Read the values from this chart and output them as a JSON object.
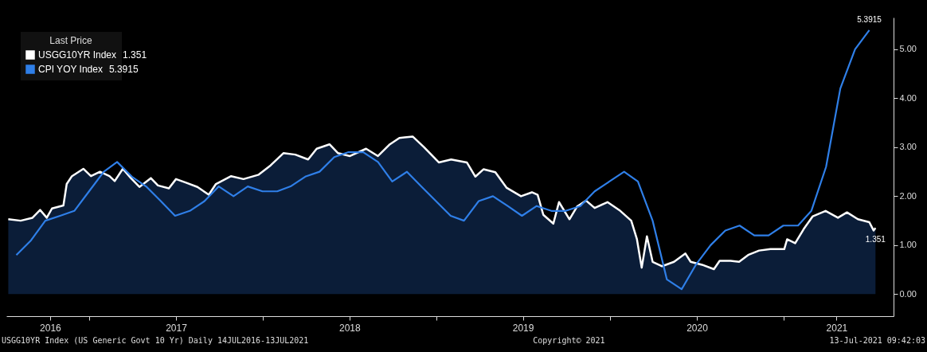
{
  "chart_data": {
    "type": "area",
    "legend_title": "Last Price",
    "legend": "top left",
    "grid": false,
    "line_style": "solid",
    "xlim": [
      "2016-07-10",
      "2021-08-20"
    ],
    "xticks": [
      {
        "value": "2016-10-10",
        "label": "2016"
      },
      {
        "value": "2017-01-01",
        "label": null
      },
      {
        "value": "2017-07-02",
        "label": "2017"
      },
      {
        "value": "2018-01-01",
        "label": null
      },
      {
        "value": "2018-07-02",
        "label": "2018"
      },
      {
        "value": "2019-01-01",
        "label": null
      },
      {
        "value": "2019-07-02",
        "label": "2019"
      },
      {
        "value": "2020-01-01",
        "label": null
      },
      {
        "value": "2020-07-02",
        "label": "2020"
      },
      {
        "value": "2021-01-01",
        "label": null
      },
      {
        "value": "2021-04-22",
        "label": "2021"
      }
    ],
    "ylim": [
      -0.45,
      5.65
    ],
    "yticks": [
      {
        "value": 0,
        "label": "0.00"
      },
      {
        "value": 1,
        "label": "1.00"
      },
      {
        "value": 2,
        "label": "2.00"
      },
      {
        "value": 3,
        "label": "3.00"
      },
      {
        "value": 4,
        "label": "4.00"
      },
      {
        "value": 5,
        "label": "5.00"
      }
    ],
    "annotations": [
      "USGG10YR Index (US Generic Govt 10 Yr)  Daily 14JUL2016-13JUL2021",
      "Copyright© 2021",
      "13-Jul-2021 09:42:03"
    ],
    "series": [
      {
        "name": "USGG10YR Index",
        "color": "#ffffff",
        "x": [
          "2016-07-14",
          "2016-08-09",
          "2016-09-03",
          "2016-09-19",
          "2016-10-03",
          "2016-10-14",
          "2016-11-07",
          "2016-11-14",
          "2016-11-25",
          "2016-12-19",
          "2017-01-04",
          "2017-01-23",
          "2017-02-12",
          "2017-02-23",
          "2017-03-12",
          "2017-03-29",
          "2017-04-16",
          "2017-05-10",
          "2017-05-25",
          "2017-06-17",
          "2017-07-02",
          "2017-07-22",
          "2017-08-16",
          "2017-09-09",
          "2017-09-24",
          "2017-10-26",
          "2017-11-21",
          "2017-12-23",
          "2018-01-17",
          "2018-02-13",
          "2018-03-10",
          "2018-04-06",
          "2018-04-24",
          "2018-05-21",
          "2018-06-08",
          "2018-07-03",
          "2018-08-06",
          "2018-08-31",
          "2018-09-25",
          "2018-10-15",
          "2018-11-12",
          "2018-12-06",
          "2019-01-06",
          "2019-02-01",
          "2019-03-06",
          "2019-03-24",
          "2019-04-10",
          "2019-05-05",
          "2019-05-29",
          "2019-06-28",
          "2019-07-21",
          "2019-08-02",
          "2019-08-14",
          "2019-09-04",
          "2019-09-16",
          "2019-10-08",
          "2019-10-24",
          "2019-11-12",
          "2019-11-30",
          "2019-12-27",
          "2020-01-23",
          "2020-02-15",
          "2020-02-27",
          "2020-03-08",
          "2020-03-19",
          "2020-03-31",
          "2020-04-20",
          "2020-05-15",
          "2020-06-08",
          "2020-06-19",
          "2020-07-13",
          "2020-08-07",
          "2020-08-19",
          "2020-09-11",
          "2020-09-29",
          "2020-10-18",
          "2020-11-10",
          "2020-12-04",
          "2021-01-02",
          "2021-01-08",
          "2021-01-25",
          "2021-02-12",
          "2021-03-03",
          "2021-03-30",
          "2021-04-25",
          "2021-05-14",
          "2021-06-06",
          "2021-06-30",
          "2021-07-09",
          "2021-07-13"
        ],
        "values": [
          1.53,
          1.5,
          1.56,
          1.72,
          1.56,
          1.75,
          1.81,
          2.25,
          2.41,
          2.56,
          2.41,
          2.5,
          2.41,
          2.31,
          2.56,
          2.37,
          2.19,
          2.37,
          2.22,
          2.16,
          2.35,
          2.28,
          2.19,
          2.03,
          2.25,
          2.41,
          2.35,
          2.44,
          2.63,
          2.88,
          2.85,
          2.75,
          2.97,
          3.06,
          2.88,
          2.82,
          2.97,
          2.82,
          3.06,
          3.19,
          3.22,
          3.0,
          2.69,
          2.75,
          2.69,
          2.4,
          2.55,
          2.49,
          2.17,
          2.0,
          2.08,
          2.03,
          1.62,
          1.44,
          1.88,
          1.53,
          1.79,
          1.91,
          1.76,
          1.88,
          1.7,
          1.5,
          1.12,
          0.54,
          1.18,
          0.66,
          0.57,
          0.66,
          0.83,
          0.66,
          0.6,
          0.51,
          0.68,
          0.68,
          0.66,
          0.8,
          0.89,
          0.92,
          0.92,
          1.12,
          1.04,
          1.33,
          1.59,
          1.7,
          1.56,
          1.67,
          1.53,
          1.47,
          1.3,
          1.351
        ],
        "value_labels": [
          null,
          null,
          null,
          null,
          null,
          null,
          null,
          null,
          null,
          null,
          null,
          null,
          null,
          null,
          null,
          null,
          null,
          null,
          null,
          null,
          null,
          null,
          null,
          null,
          null,
          null,
          null,
          null,
          null,
          null,
          null,
          null,
          null,
          null,
          null,
          null,
          null,
          null,
          null,
          null,
          null,
          null,
          null,
          null,
          null,
          null,
          null,
          null,
          null,
          null,
          null,
          null,
          null,
          null,
          null,
          null,
          null,
          null,
          null,
          null,
          null,
          null,
          null,
          null,
          null,
          null,
          null,
          null,
          null,
          null,
          null,
          null,
          null,
          null,
          null,
          null,
          null,
          null,
          null,
          null,
          null,
          null,
          null,
          null,
          null,
          null,
          null,
          null,
          null,
          "1.351"
        ]
      },
      {
        "name": "CPI YOY Index",
        "type": "line",
        "color": "#2f7fe8",
        "x": [
          "2016-07-31",
          "2016-08-31",
          "2016-09-30",
          "2016-10-31",
          "2016-11-30",
          "2016-12-31",
          "2017-01-31",
          "2017-02-28",
          "2017-03-31",
          "2017-04-30",
          "2017-05-31",
          "2017-06-30",
          "2017-07-31",
          "2017-08-31",
          "2017-09-30",
          "2017-10-31",
          "2017-11-30",
          "2017-12-31",
          "2018-01-31",
          "2018-02-28",
          "2018-03-31",
          "2018-04-30",
          "2018-05-31",
          "2018-06-30",
          "2018-07-31",
          "2018-08-31",
          "2018-09-30",
          "2018-10-31",
          "2018-11-30",
          "2018-12-31",
          "2019-01-31",
          "2019-02-28",
          "2019-03-31",
          "2019-04-30",
          "2019-05-31",
          "2019-06-30",
          "2019-07-31",
          "2019-08-31",
          "2019-09-30",
          "2019-10-31",
          "2019-11-30",
          "2019-12-31",
          "2020-01-31",
          "2020-02-29",
          "2020-03-31",
          "2020-04-30",
          "2020-05-31",
          "2020-06-30",
          "2020-07-31",
          "2020-08-31",
          "2020-09-30",
          "2020-10-31",
          "2020-11-30",
          "2020-12-31",
          "2021-01-31",
          "2021-02-28",
          "2021-03-31",
          "2021-04-30",
          "2021-05-31",
          "2021-06-30"
        ],
        "values": [
          0.8,
          1.1,
          1.5,
          1.6,
          1.7,
          2.1,
          2.5,
          2.7,
          2.4,
          2.2,
          1.9,
          1.6,
          1.7,
          1.9,
          2.2,
          2.0,
          2.2,
          2.1,
          2.1,
          2.2,
          2.4,
          2.5,
          2.8,
          2.9,
          2.9,
          2.7,
          2.3,
          2.5,
          2.2,
          1.9,
          1.6,
          1.5,
          1.9,
          2.0,
          1.8,
          1.6,
          1.8,
          1.7,
          1.7,
          1.8,
          2.1,
          2.3,
          2.5,
          2.3,
          1.5,
          0.3,
          0.1,
          0.6,
          1.0,
          1.3,
          1.4,
          1.2,
          1.2,
          1.4,
          1.4,
          1.7,
          2.6,
          4.2,
          5.0,
          5.3915
        ],
        "value_labels": [
          null,
          null,
          null,
          null,
          null,
          null,
          null,
          null,
          null,
          null,
          null,
          null,
          null,
          null,
          null,
          null,
          null,
          null,
          null,
          null,
          null,
          null,
          null,
          null,
          null,
          null,
          null,
          null,
          null,
          null,
          null,
          null,
          null,
          null,
          null,
          null,
          null,
          null,
          null,
          null,
          null,
          null,
          null,
          null,
          null,
          null,
          null,
          null,
          null,
          null,
          null,
          null,
          null,
          null,
          null,
          null,
          null,
          null,
          null,
          "5.3915"
        ]
      }
    ]
  }
}
